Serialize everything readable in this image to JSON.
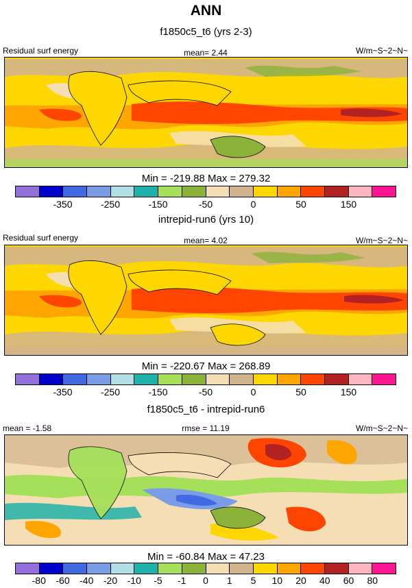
{
  "title": "ANN",
  "panels": [
    {
      "subtitle": "f1850c5_t6 (yrs 2-3)",
      "left_label": "Residual surf energy",
      "center_label": "mean=   2.44",
      "right_label": "W/m~S~2~N~",
      "minmax": "Min = -219.88 Max = 279.32",
      "colorbar_ticks": [
        "-350",
        "-250",
        "-150",
        "-50",
        "0",
        "50",
        "150"
      ]
    },
    {
      "subtitle": "intrepid-run6 (yrs 10)",
      "left_label": "Residual surf energy",
      "center_label": "mean=   4.02",
      "right_label": "W/m~S~2~N~",
      "minmax": "Min = -220.67 Max = 268.89",
      "colorbar_ticks": [
        "-350",
        "-250",
        "-150",
        "-50",
        "0",
        "50",
        "150"
      ]
    },
    {
      "subtitle": "f1850c5_t6 - intrepid-run6",
      "left_label": "mean =  -1.58",
      "center_label": "rmse =  11.19",
      "right_label": "W/m~S~2~N~",
      "minmax": "Min = -60.84 Max =  47.23",
      "colorbar_ticks": [
        "-80",
        "-60",
        "-40",
        "-20",
        "-10",
        "-5",
        "-1",
        "0",
        "1",
        "5",
        "10",
        "20",
        "40",
        "60",
        "80"
      ]
    }
  ],
  "colors": {
    "palette": [
      "#9370db",
      "#0000cd",
      "#4169e1",
      "#7b9ce6",
      "#b0e0e6",
      "#20b2aa",
      "#a6e05a",
      "#8bb33a",
      "#f5deb3",
      "#d2b48c",
      "#ffd700",
      "#ffa500",
      "#ff4500",
      "#b22222",
      "#ffb6c1",
      "#ff1493"
    ],
    "land_line": "#000000"
  }
}
